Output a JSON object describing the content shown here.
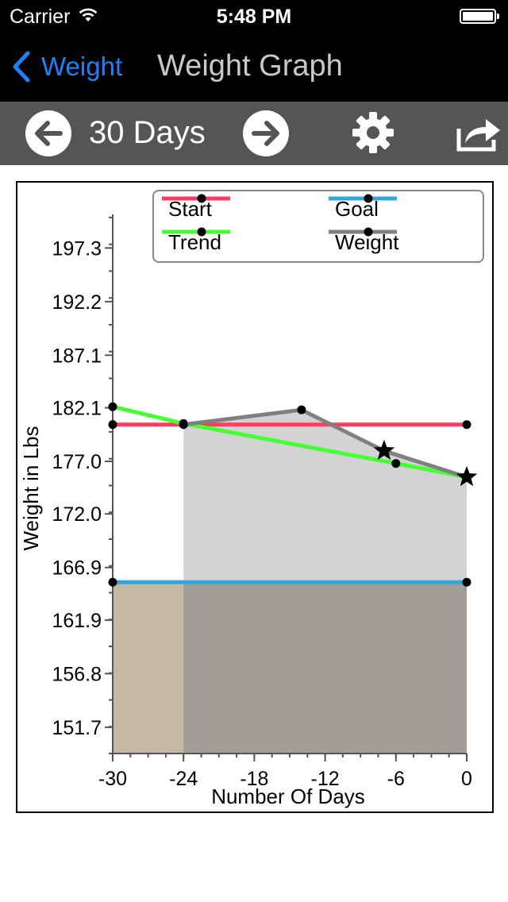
{
  "status": {
    "carrier": "Carrier",
    "time": "5:48 PM"
  },
  "nav": {
    "back_label": "Weight",
    "title": "Weight Graph"
  },
  "toolbar": {
    "range_label": "30 Days"
  },
  "chart_data": {
    "type": "line",
    "xlabel": "Number Of Days",
    "ylabel": "Weight in Lbs",
    "xlim": [
      -30,
      0
    ],
    "ylim": [
      149.2,
      200.5
    ],
    "x_ticks": [
      -30,
      -24,
      -18,
      -12,
      -6,
      0
    ],
    "x_tick_labels": [
      "-30",
      "-24",
      "-18",
      "-12",
      "-6",
      "0"
    ],
    "y_ticks": [
      151.7,
      156.8,
      161.9,
      166.9,
      172.0,
      177.0,
      182.1,
      187.1,
      192.2,
      197.3
    ],
    "y_tick_labels": [
      "151.7",
      "156.8",
      "161.9",
      "166.9",
      "172.0",
      "177.0",
      "182.1",
      "187.1",
      "192.2",
      "197.3"
    ],
    "legend_position": "top-right",
    "series": [
      {
        "name": "Start",
        "color": "#ff3b5e",
        "points": [
          [
            -30,
            180.5
          ],
          [
            0,
            180.5
          ]
        ]
      },
      {
        "name": "Goal",
        "color": "#30a8df",
        "points": [
          [
            -30,
            165.5
          ],
          [
            0,
            165.5
          ]
        ]
      },
      {
        "name": "Trend",
        "color": "#44ff33",
        "points": [
          [
            -30,
            182.2
          ],
          [
            -24,
            180.6
          ],
          [
            -6,
            176.8
          ],
          [
            0,
            175.5
          ]
        ]
      },
      {
        "name": "Weight",
        "color": "#808080",
        "points": [
          [
            -24,
            180.5
          ],
          [
            -14,
            181.9
          ],
          [
            -7,
            178.0
          ],
          [
            0,
            175.5
          ]
        ],
        "star_markers": [
          [
            -7,
            178.0
          ],
          [
            0,
            175.5
          ]
        ]
      }
    ],
    "legend_order": [
      "Start",
      "Goal",
      "Trend",
      "Weight"
    ]
  }
}
